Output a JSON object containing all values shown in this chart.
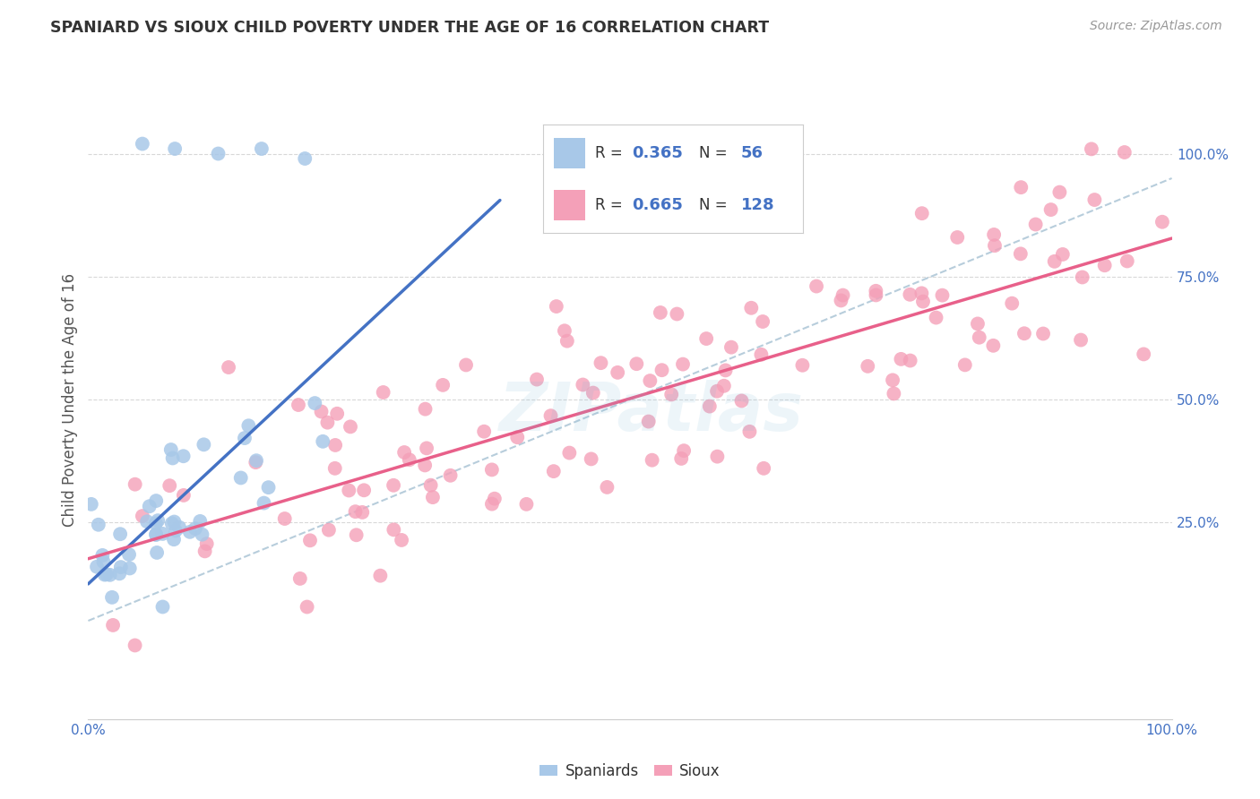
{
  "title": "SPANIARD VS SIOUX CHILD POVERTY UNDER THE AGE OF 16 CORRELATION CHART",
  "source": "Source: ZipAtlas.com",
  "ylabel": "Child Poverty Under the Age of 16",
  "watermark": "ZIPatlas",
  "blue_R": "0.365",
  "blue_N": "56",
  "pink_R": "0.665",
  "pink_N": "128",
  "blue_color": "#a8c8e8",
  "pink_color": "#f4a0b8",
  "blue_line_color": "#4472c4",
  "pink_line_color": "#e8608a",
  "dashed_line_color": "#b0c8d8",
  "title_color": "#333333",
  "source_color": "#999999",
  "tick_color": "#4472c4",
  "legend_text_color": "#333333",
  "legend_value_color": "#4472c4",
  "grid_color": "#d8d8d8",
  "background_color": "#ffffff",
  "blue_scatter_seed": 12,
  "pink_scatter_seed": 7
}
